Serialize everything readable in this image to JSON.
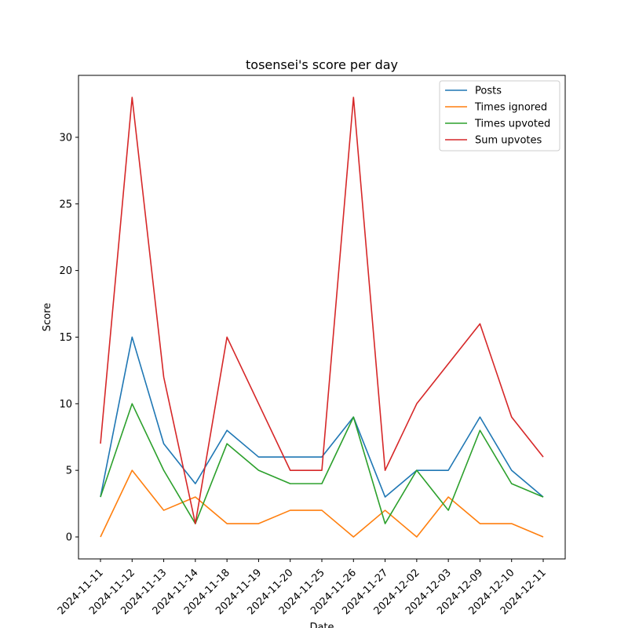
{
  "chart_data": {
    "type": "line",
    "title": "tosensei's score per day",
    "xlabel": "Date",
    "ylabel": "Score",
    "categories": [
      "2024-11-11",
      "2024-11-12",
      "2024-11-13",
      "2024-11-14",
      "2024-11-18",
      "2024-11-19",
      "2024-11-20",
      "2024-11-25",
      "2024-11-26",
      "2024-11-27",
      "2024-12-02",
      "2024-12-03",
      "2024-12-09",
      "2024-12-10",
      "2024-12-11"
    ],
    "yticks": [
      0,
      5,
      10,
      15,
      20,
      25,
      30
    ],
    "ylim": [
      -1.65,
      34.65
    ],
    "grid": false,
    "legend_position": "top-right",
    "series": [
      {
        "name": "Posts",
        "color": "#1f77b4",
        "values": [
          3,
          15,
          7,
          4,
          8,
          6,
          6,
          6,
          9,
          3,
          5,
          5,
          9,
          5,
          3
        ]
      },
      {
        "name": "Times ignored",
        "color": "#ff7f0e",
        "values": [
          0,
          5,
          2,
          3,
          1,
          1,
          2,
          2,
          0,
          2,
          0,
          3,
          1,
          1,
          0
        ]
      },
      {
        "name": "Times upvoted",
        "color": "#2ca02c",
        "values": [
          3,
          10,
          5,
          1,
          7,
          5,
          4,
          4,
          9,
          1,
          5,
          2,
          8,
          4,
          3
        ]
      },
      {
        "name": "Sum upvotes",
        "color": "#d62728",
        "values": [
          7,
          33,
          12,
          1,
          15,
          10,
          5,
          5,
          33,
          5,
          10,
          13,
          16,
          9,
          6
        ]
      }
    ]
  }
}
